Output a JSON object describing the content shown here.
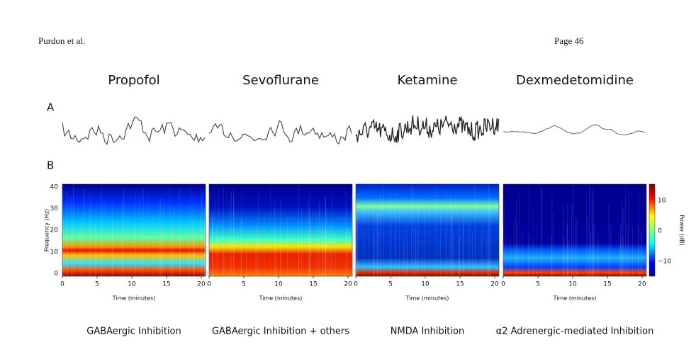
{
  "header": {
    "author": "Purdon et al.",
    "page": "Page 46"
  },
  "figure": {
    "panel_labels": [
      "A",
      "B"
    ],
    "columns": [
      {
        "drug": "Propofol",
        "mechanism": "GABAergic Inhibition"
      },
      {
        "drug": "Sevoflurane",
        "mechanism": "GABAergic Inhibition + others"
      },
      {
        "drug": "Ketamine",
        "mechanism": "NMDA Inhibition"
      },
      {
        "drug": "Dexmedetomidine",
        "mechanism": "α2 Adrenergic-mediated Inhibition"
      }
    ],
    "y_axis": {
      "label": "Frequency (Hz)",
      "ticks": [
        "40",
        "30",
        "20",
        "10",
        "0"
      ]
    },
    "x_axis": {
      "label": "Time (minutes)",
      "ticks": [
        "0",
        "5",
        "10",
        "15",
        "20"
      ]
    },
    "colorbar": {
      "label": "Power (dB)",
      "ticks": [
        "10",
        "0",
        "−10"
      ]
    }
  }
}
